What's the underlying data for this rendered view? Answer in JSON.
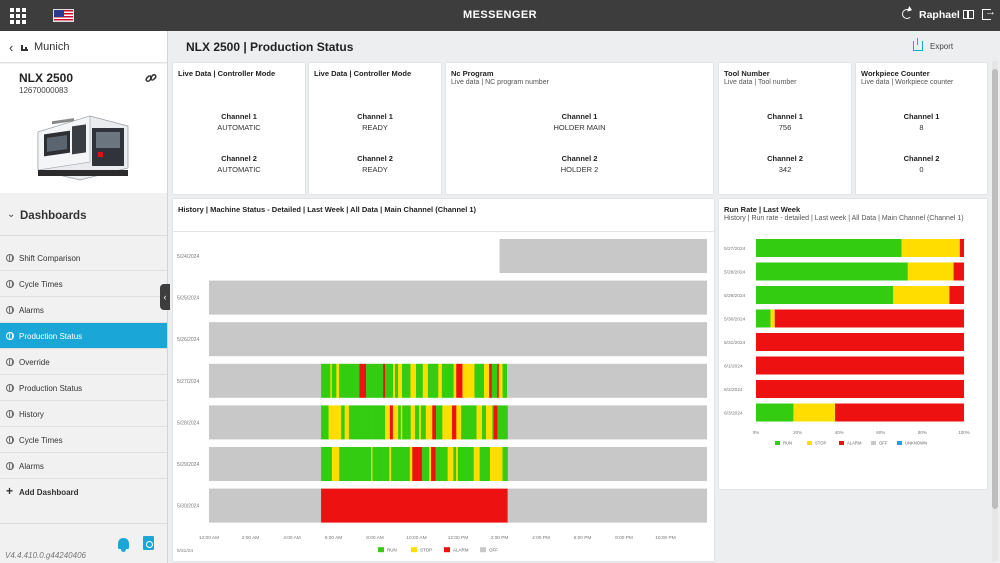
{
  "topbar": {
    "app_title": "MESSENGER",
    "username": "Raphael"
  },
  "sidebar": {
    "location": "Munich",
    "machine": {
      "name": "NLX 2500",
      "serial": "12670000083"
    },
    "section_title": "Dashboards",
    "items": [
      {
        "label": "Shift Comparison",
        "active": false
      },
      {
        "label": "Cycle Times",
        "active": false
      },
      {
        "label": "Alarms",
        "active": false
      },
      {
        "label": "Production Status",
        "active": true
      },
      {
        "label": "Override",
        "active": false
      },
      {
        "label": "Production Status",
        "active": false
      },
      {
        "label": "History",
        "active": false
      },
      {
        "label": "Cycle Times",
        "active": false
      },
      {
        "label": "Alarms",
        "active": false
      }
    ],
    "add_dashboard": "Add Dashboard",
    "version": "V4.4.410.0.g44240406"
  },
  "page": {
    "title": "NLX 2500 | Production Status",
    "export_label": "Export"
  },
  "live_cards": [
    {
      "title": "Live Data | Controller Mode",
      "subtitle": "",
      "ch1_label": "Channel 1",
      "ch1_value": "AUTOMATIC",
      "ch2_label": "Channel 2",
      "ch2_value": "AUTOMATIC"
    },
    {
      "title": "Live Data | Controller Mode",
      "subtitle": "",
      "ch1_label": "Channel 1",
      "ch1_value": "READY",
      "ch2_label": "Channel 2",
      "ch2_value": "READY"
    },
    {
      "title": "Nc Program",
      "subtitle": "Live data | NC program number",
      "ch1_label": "Channel 1",
      "ch1_value": "HOLDER MAIN",
      "ch2_label": "Channel 2",
      "ch2_value": "HOLDER 2"
    },
    {
      "title": "Tool Number",
      "subtitle": "Live data | Tool number",
      "ch1_label": "Channel 1",
      "ch1_value": "756",
      "ch2_label": "Channel 2",
      "ch2_value": "342"
    },
    {
      "title": "Workpiece Counter",
      "subtitle": "Live data | Workpiece counter",
      "ch1_label": "Channel 1",
      "ch1_value": "8",
      "ch2_label": "Channel 2",
      "ch2_value": "0"
    }
  ],
  "colors": {
    "run": "#33cc11",
    "stop": "#ffdd00",
    "alarm": "#ee1111",
    "off": "#c8c8c8",
    "unknown": "#1aa7d8",
    "accent": "#1aa7d8"
  },
  "history_card": {
    "title": "History | Machine Status - Detailed | Last Week | All Data | Main Channel (Channel 1)"
  },
  "runrate_card": {
    "title": "Run Rate | Last Week",
    "subtitle": "History | Run rate - detailed | Last week | All Data | Main Channel (Channel 1)"
  },
  "chart_data": [
    {
      "type": "timeline",
      "title": "History | Machine Status - Detailed | Last Week | All Data | Main Channel (Channel 1)",
      "rows": [
        "5/24/2024",
        "5/25/2024",
        "5/26/2024",
        "5/27/2024",
        "5/28/2024",
        "5/29/2024",
        "5/30/2024"
      ],
      "x_ticks": [
        "12:00 AM",
        "2:00 AM",
        "4:00 AM",
        "6:00 AM",
        "8:00 AM",
        "10:00 AM",
        "12:00 PM",
        "2:00 PM",
        "4:00 PM",
        "6:00 PM",
        "8:00 PM",
        "10:00 PM"
      ],
      "x_range_hours": [
        0,
        24
      ],
      "footer_date": "5/31/24",
      "legend": [
        "RUN",
        "STOP",
        "ALARM",
        "OFF"
      ],
      "series": [
        {
          "row": "5/24/2024",
          "segments": [
            {
              "state": "off",
              "start": 14.0,
              "end": 24
            }
          ]
        },
        {
          "row": "5/25/2024",
          "segments": [
            {
              "state": "off",
              "start": 0,
              "end": 24
            }
          ]
        },
        {
          "row": "5/26/2024",
          "segments": [
            {
              "state": "off",
              "start": 0,
              "end": 24
            }
          ]
        },
        {
          "row": "5/27/2024",
          "segments": [
            {
              "state": "off",
              "start": 0,
              "end": 5.4
            },
            {
              "state": "mixed",
              "start": 5.4,
              "end": 14.4
            },
            {
              "state": "off",
              "start": 14.4,
              "end": 24
            }
          ]
        },
        {
          "row": "5/28/2024",
          "segments": [
            {
              "state": "off",
              "start": 0,
              "end": 5.4
            },
            {
              "state": "mixed",
              "start": 5.4,
              "end": 14.4
            },
            {
              "state": "off",
              "start": 14.4,
              "end": 24
            }
          ]
        },
        {
          "row": "5/29/2024",
          "segments": [
            {
              "state": "off",
              "start": 0,
              "end": 5.4
            },
            {
              "state": "mixed",
              "start": 5.4,
              "end": 14.4
            },
            {
              "state": "off",
              "start": 14.4,
              "end": 24
            }
          ]
        },
        {
          "row": "5/30/2024",
          "segments": [
            {
              "state": "off",
              "start": 0,
              "end": 5.4
            },
            {
              "state": "alarm",
              "start": 5.4,
              "end": 14.4
            },
            {
              "state": "off",
              "start": 14.4,
              "end": 24
            }
          ]
        }
      ]
    },
    {
      "type": "bar",
      "orientation": "horizontal",
      "stacked": true,
      "title": "Run Rate | Last Week",
      "categories": [
        "5/27/2024",
        "5/28/2024",
        "5/29/2024",
        "5/30/2024",
        "5/31/2024",
        "6/1/2024",
        "6/2/2024",
        "6/3/2024"
      ],
      "x_ticks": [
        "0%",
        "20%",
        "40%",
        "60%",
        "80%",
        "100%"
      ],
      "xlim": [
        0,
        100
      ],
      "legend": [
        "RUN",
        "STOP",
        "ALARM",
        "OFF",
        "UNKNOWN"
      ],
      "series": [
        {
          "name": "RUN",
          "values": [
            70,
            73,
            66,
            7,
            0,
            0,
            0,
            18
          ]
        },
        {
          "name": "STOP",
          "values": [
            28,
            22,
            27,
            2,
            0,
            0,
            0,
            20
          ]
        },
        {
          "name": "ALARM",
          "values": [
            2,
            5,
            7,
            91,
            100,
            100,
            100,
            62
          ]
        },
        {
          "name": "OFF",
          "values": [
            0,
            0,
            0,
            0,
            0,
            0,
            0,
            0
          ]
        },
        {
          "name": "UNKNOWN",
          "values": [
            0,
            0,
            0,
            0,
            0,
            0,
            0,
            0
          ]
        }
      ]
    }
  ]
}
